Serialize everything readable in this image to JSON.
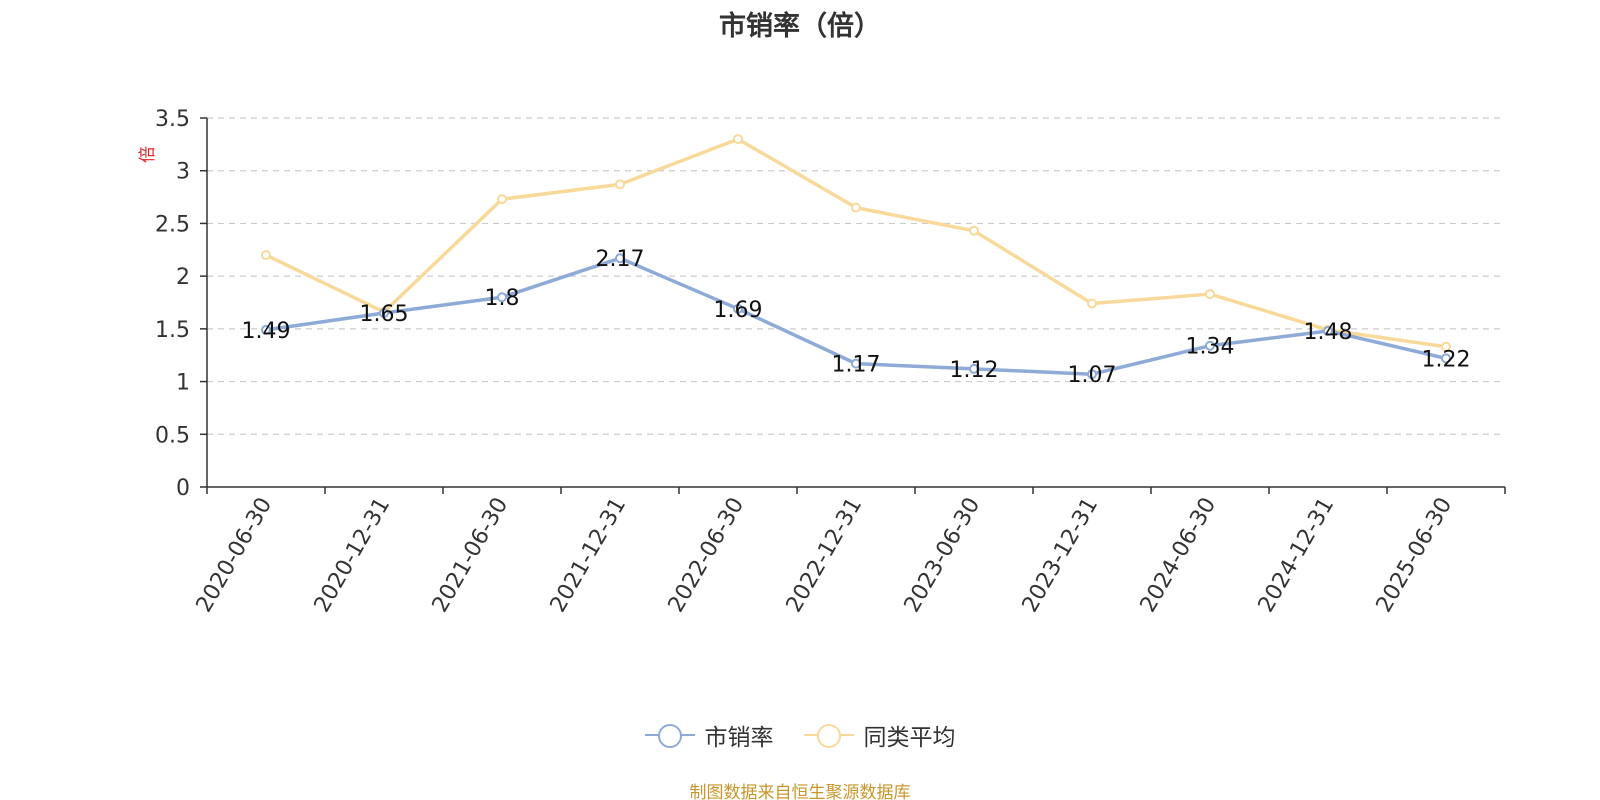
{
  "chart_data": {
    "type": "line",
    "title": "市销率（倍）",
    "ylabel": "倍",
    "xlabel": "",
    "categories": [
      "2020-06-30",
      "2020-12-31",
      "2021-06-30",
      "2021-12-31",
      "2022-06-30",
      "2022-12-31",
      "2023-06-30",
      "2023-12-31",
      "2024-06-30",
      "2024-12-31",
      "2025-06-30"
    ],
    "ylim": [
      0,
      3.5
    ],
    "yticks": [
      "0",
      "0.5",
      "1",
      "1.5",
      "2",
      "2.5",
      "3",
      "3.5"
    ],
    "grid": true,
    "legend_position": "bottom",
    "series": [
      {
        "name": "市销率",
        "color": "#8eaad6",
        "values": [
          1.49,
          1.65,
          1.8,
          2.17,
          1.69,
          1.17,
          1.12,
          1.07,
          1.34,
          1.48,
          1.22
        ],
        "labels": [
          "1.49",
          "1.65",
          "1.8",
          "2.17",
          "1.69",
          "1.17",
          "1.12",
          "1.07",
          "1.34",
          "1.48",
          "1.22"
        ]
      },
      {
        "name": "同类平均",
        "color": "#f8d999",
        "values": [
          2.2,
          1.66,
          2.73,
          2.87,
          3.3,
          2.65,
          2.43,
          1.74,
          1.83,
          1.49,
          1.33
        ]
      }
    ],
    "source": "制图数据来自恒生聚源数据库"
  }
}
